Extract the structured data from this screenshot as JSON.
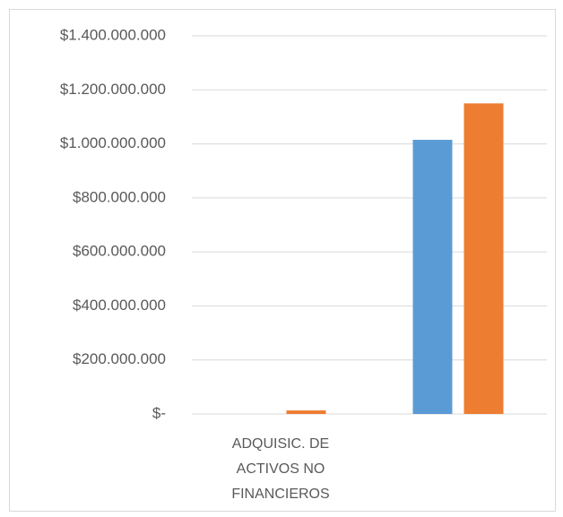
{
  "chart_data": {
    "type": "bar",
    "categories": [
      "ADQUISIC. DE ACTIVOS NO FINANCIEROS",
      null
    ],
    "series": [
      {
        "color": "#5b9bd5",
        "values": [
          0,
          1015000000
        ]
      },
      {
        "color": "#ed7d31",
        "values": [
          13000000,
          1150000000
        ]
      }
    ],
    "ylim": [
      0,
      1400000000
    ],
    "yticks": [
      {
        "value": 0,
        "label": "$-"
      },
      {
        "value": 200000000,
        "label": "$200.000.000"
      },
      {
        "value": 400000000,
        "label": "$400.000.000"
      },
      {
        "value": 600000000,
        "label": "$600.000.000"
      },
      {
        "value": 800000000,
        "label": "$800.000.000"
      },
      {
        "value": 1000000000,
        "label": "$1.000.000.000"
      },
      {
        "value": 1200000000,
        "label": "$1.200.000.000"
      },
      {
        "value": 1400000000,
        "label": "$1.400.000.000"
      }
    ],
    "grid": true
  }
}
